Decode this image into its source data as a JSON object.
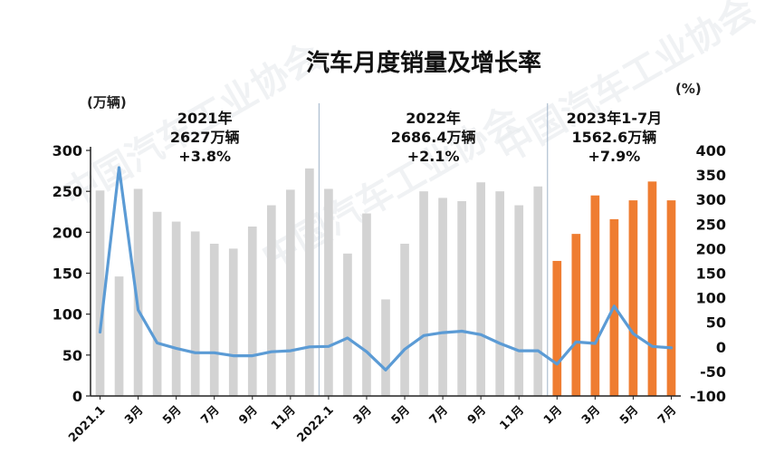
{
  "chart_data": {
    "type": "bar+line",
    "title": "汽车月度销量及增长率",
    "y_left_unit": "(万辆)",
    "y_right_unit": "(%)",
    "y_left_range": [
      0,
      300
    ],
    "y_left_ticks": [
      0,
      50,
      100,
      150,
      200,
      250,
      300
    ],
    "y_right_range": [
      -100,
      400
    ],
    "y_right_ticks": [
      -100,
      -50,
      0,
      50,
      100,
      150,
      200,
      250,
      300,
      350,
      400
    ],
    "x_tick_labels": [
      {
        "index": 0,
        "text": "2021.1"
      },
      {
        "index": 2,
        "text": "3月"
      },
      {
        "index": 4,
        "text": "5月"
      },
      {
        "index": 6,
        "text": "7月"
      },
      {
        "index": 8,
        "text": "9月"
      },
      {
        "index": 10,
        "text": "11月"
      },
      {
        "index": 12,
        "text": "2022.1"
      },
      {
        "index": 14,
        "text": "3月"
      },
      {
        "index": 16,
        "text": "5月"
      },
      {
        "index": 18,
        "text": "7月"
      },
      {
        "index": 20,
        "text": "9月"
      },
      {
        "index": 22,
        "text": "11月"
      },
      {
        "index": 24,
        "text": "1月"
      },
      {
        "index": 26,
        "text": "3月"
      },
      {
        "index": 28,
        "text": "5月"
      },
      {
        "index": 30,
        "text": "7月"
      }
    ],
    "annotations": [
      {
        "lines": [
          "2021年",
          "2627万辆",
          "+3.8%"
        ]
      },
      {
        "lines": [
          "2022年",
          "2686.4万辆",
          "+2.1%"
        ]
      },
      {
        "lines": [
          "2023年1-7月",
          "1562.6万辆",
          "+7.9%"
        ]
      }
    ],
    "sales": [
      251,
      146,
      253,
      225,
      213,
      201,
      186,
      180,
      207,
      233,
      252,
      278,
      253,
      174,
      223,
      118,
      186,
      250,
      242,
      238,
      261,
      250,
      233,
      256,
      165,
      198,
      245,
      216,
      239,
      262,
      239
    ],
    "growth_rate": [
      30,
      365,
      75,
      8,
      -3,
      -12,
      -12,
      -18,
      -18,
      -10,
      -8,
      0,
      1,
      18,
      -10,
      -47,
      -5,
      23,
      29,
      32,
      25,
      7,
      -8,
      -8,
      -35,
      10,
      7,
      83,
      27,
      1,
      -2
    ],
    "colors": {
      "bar_past": "#d3d3d3",
      "bar_2023": "#ef7d31",
      "line": "#5b9bd5",
      "axis": "#222222",
      "divider": "#9fb3c8"
    },
    "watermark": "中国汽车工业协会"
  }
}
